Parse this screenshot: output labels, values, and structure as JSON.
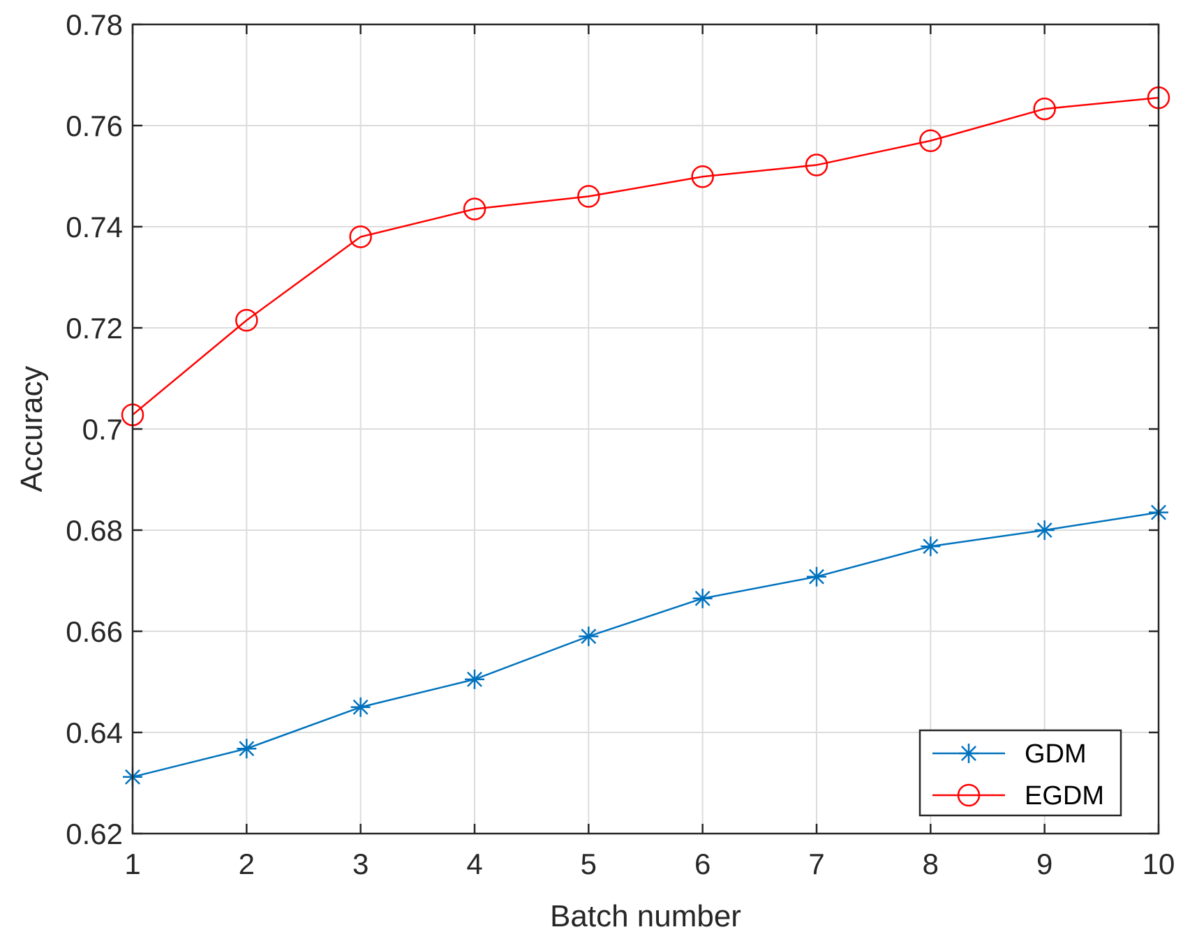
{
  "chart_data": {
    "type": "line",
    "title": "",
    "xlabel": "Batch number",
    "ylabel": "Accuracy",
    "x": [
      1,
      2,
      3,
      4,
      5,
      6,
      7,
      8,
      9,
      10
    ],
    "xlim": [
      1,
      10
    ],
    "ylim": [
      0.62,
      0.78
    ],
    "xticks": [
      "1",
      "2",
      "3",
      "4",
      "5",
      "6",
      "7",
      "8",
      "9",
      "10"
    ],
    "yticks": [
      "0.62",
      "0.64",
      "0.66",
      "0.68",
      "0.7",
      "0.72",
      "0.74",
      "0.76",
      "0.78"
    ],
    "grid": true,
    "legend_position": "bottom-right",
    "series": [
      {
        "name": "GDM",
        "color": "#0072BD",
        "marker": "asterisk",
        "values": [
          0.6312,
          0.6368,
          0.645,
          0.6505,
          0.659,
          0.6665,
          0.6708,
          0.6768,
          0.68,
          0.6835
        ]
      },
      {
        "name": "EGDM",
        "color": "#FF0000",
        "marker": "circle",
        "values": [
          0.7028,
          0.7215,
          0.738,
          0.7435,
          0.746,
          0.7499,
          0.7522,
          0.757,
          0.7633,
          0.7655
        ]
      }
    ]
  }
}
